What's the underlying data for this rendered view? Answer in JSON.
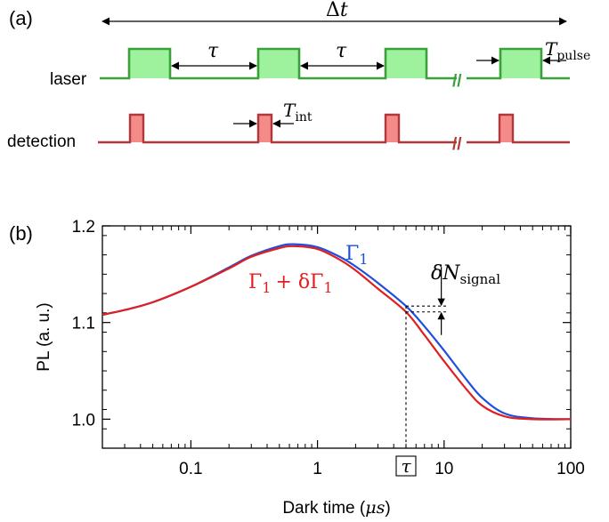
{
  "panel_a": {
    "label": "(a)",
    "span_label_delta": "Δ",
    "span_label_t": "t",
    "tau_label": "τ",
    "laser_label": "laser",
    "detection_label": "detection",
    "t_pulse_main": "T",
    "t_pulse_sub": "pulse",
    "t_int_main": "T",
    "t_int_sub": "int",
    "break_mark": "//",
    "laser_color": "#3aa13a",
    "laser_fill": "#9ef29e",
    "detection_color": "#b03838",
    "detection_fill": "#f48a8a"
  },
  "panel_b": {
    "label": "(b)",
    "curve_label_gamma": "Γ",
    "curve_label_one": "1",
    "curve_label_red_expr": "Γ",
    "curve_label_red_sub": "1",
    "curve_label_red_plus": "+ δΓ",
    "curve_label_red_sub2": "1",
    "delta_n_main": "δN",
    "delta_n_sub": "signal",
    "tau_box_label": "τ",
    "blue_color": "#1f4fe0",
    "red_color": "#e01f1f"
  },
  "chart_data": {
    "type": "line",
    "xlabel_main": "Dark time (",
    "xlabel_unit": "μs",
    "xlabel_close": ")",
    "ylabel": "PL (a. u.)",
    "xscale": "log",
    "xlim": [
      0.02,
      100
    ],
    "ylim": [
      0.97,
      1.2
    ],
    "xticks": [
      0.1,
      1,
      10,
      100
    ],
    "xtick_labels": [
      "0.1",
      "1",
      "10",
      "100"
    ],
    "yticks": [
      1.0,
      1.1,
      1.2
    ],
    "ytick_labels": [
      "1.0",
      "1.1",
      "1.2"
    ],
    "grid": false,
    "tau_marker_x": 5,
    "series": [
      {
        "name": "Γ1",
        "x": [
          0.02,
          0.03,
          0.05,
          0.1,
          0.2,
          0.3,
          0.5,
          0.65,
          1,
          1.5,
          2,
          3,
          5,
          7,
          10,
          15,
          20,
          30,
          50,
          100
        ],
        "values": [
          1.108,
          1.113,
          1.121,
          1.137,
          1.157,
          1.169,
          1.179,
          1.181,
          1.178,
          1.168,
          1.158,
          1.141,
          1.117,
          1.096,
          1.071,
          1.041,
          1.022,
          1.006,
          1.001,
          1.0
        ]
      },
      {
        "name": "Γ1 + δΓ1",
        "x": [
          0.02,
          0.03,
          0.05,
          0.1,
          0.2,
          0.3,
          0.5,
          0.65,
          1,
          1.5,
          2,
          3,
          5,
          7,
          10,
          15,
          20,
          30,
          50,
          100
        ],
        "values": [
          1.108,
          1.113,
          1.121,
          1.137,
          1.156,
          1.168,
          1.177,
          1.179,
          1.176,
          1.165,
          1.154,
          1.135,
          1.111,
          1.087,
          1.06,
          1.031,
          1.014,
          1.003,
          1.0,
          1.0
        ]
      }
    ]
  }
}
